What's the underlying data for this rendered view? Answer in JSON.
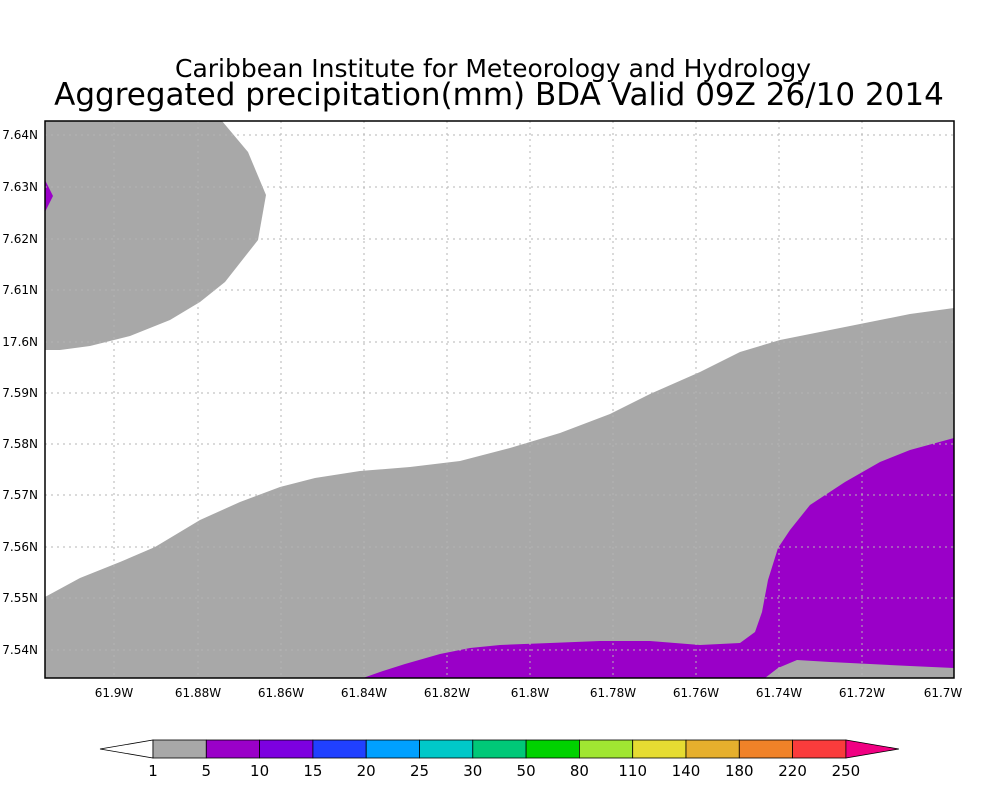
{
  "header": {
    "title": "Caribbean Institute for Meteorology and Hydrology",
    "subtitle": "Aggregated precipitation(mm) BDA Valid 09Z 26/10 2014"
  },
  "map": {
    "lon_ticks": [
      "61.9W",
      "61.88W",
      "61.86W",
      "61.84W",
      "61.82W",
      "61.8W",
      "61.78W",
      "61.76W",
      "61.74W",
      "61.72W",
      "61.7W"
    ],
    "lat_ticks": [
      "7.64N",
      "7.63N",
      "7.62N",
      "7.61N",
      "17.6N",
      "7.59N",
      "7.58N",
      "7.57N",
      "7.56N",
      "7.55N",
      "7.54N"
    ],
    "colors": {
      "level_1_5": "#a8a8a8",
      "level_5_10": "#9a00c8",
      "frame": "#000000"
    }
  },
  "colorbar": {
    "labels": [
      "1",
      "5",
      "10",
      "15",
      "20",
      "25",
      "30",
      "50",
      "80",
      "110",
      "140",
      "180",
      "220",
      "250"
    ],
    "colors": [
      "#ffffff",
      "#a8a8a8",
      "#9a00c8",
      "#7d00e0",
      "#2040ff",
      "#00a0ff",
      "#00c8c8",
      "#00c878",
      "#00d200",
      "#a0e632",
      "#e6dc32",
      "#e6af2d",
      "#f08228",
      "#fa3c3c",
      "#f00082"
    ]
  }
}
